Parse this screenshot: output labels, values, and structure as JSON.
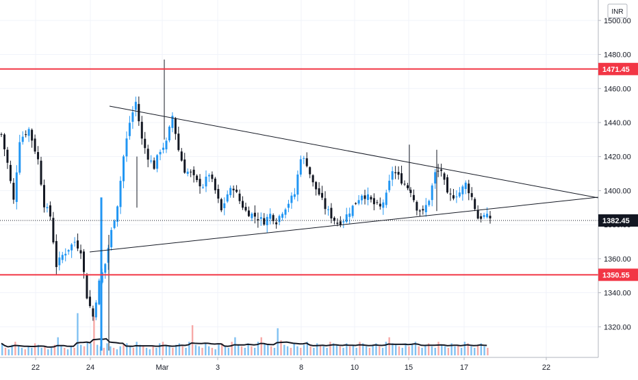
{
  "chart_data": {
    "type": "candlestick",
    "currency": "INR",
    "colors": {
      "up": "#2196f3",
      "down": "#131722",
      "level": "#f23645",
      "last_price": "#131722",
      "trendline": "#131722",
      "grid": "#f0f3fa",
      "volume_up": "#80c1f2",
      "volume_down": "#f7a9a7",
      "volume_ma": "#131722"
    },
    "y_axis": {
      "ticks": [
        "1500.00",
        "1480.00",
        "1460.00",
        "1440.00",
        "1420.00",
        "1400.00",
        "1380.00",
        "1360.00",
        "1340.00",
        "1320.00"
      ],
      "range": [
        1302,
        1512
      ]
    },
    "x_axis": {
      "ticks": [
        "22",
        "24",
        "Mar",
        "3",
        "8",
        "10",
        "15",
        "17",
        "22"
      ],
      "date_range": [
        "Feb 20",
        "Mar 24"
      ]
    },
    "levels": [
      {
        "label": "1471.45",
        "value": 1471.45
      },
      {
        "label": "1350.55",
        "value": 1350.55
      }
    ],
    "last_price": {
      "label": "1382.45",
      "value": 1382.45
    },
    "trendlines": [
      {
        "name": "upper-trendline",
        "from": [
          "Feb 25",
          1458
        ],
        "to": [
          "Mar 23",
          1396
        ]
      },
      {
        "name": "lower-trendline",
        "from": [
          "Feb 24",
          1364
        ],
        "to": [
          "Mar 23",
          1397
        ]
      }
    ],
    "highlight_candles": [
      {
        "x": "Feb 24",
        "low": 1306,
        "high": 1396
      },
      {
        "x": "Feb 24",
        "low": 1306,
        "high": 1374
      }
    ],
    "price_path": [
      [
        0,
        1433
      ],
      [
        2,
        1416
      ],
      [
        4,
        1394
      ],
      [
        6,
        1430
      ],
      [
        9,
        1436
      ],
      [
        12,
        1418
      ],
      [
        14,
        1392
      ],
      [
        16,
        1385
      ],
      [
        18,
        1356
      ],
      [
        20,
        1362
      ],
      [
        22,
        1366
      ],
      [
        24,
        1370
      ],
      [
        26,
        1365
      ],
      [
        28,
        1338
      ],
      [
        30,
        1326
      ],
      [
        32,
        1346
      ],
      [
        34,
        1357
      ],
      [
        36,
        1376
      ],
      [
        38,
        1392
      ],
      [
        40,
        1420
      ],
      [
        42,
        1440
      ],
      [
        44,
        1452
      ],
      [
        46,
        1430
      ],
      [
        48,
        1420
      ],
      [
        50,
        1414
      ],
      [
        52,
        1424
      ],
      [
        54,
        1428
      ],
      [
        56,
        1444
      ],
      [
        58,
        1424
      ],
      [
        60,
        1412
      ],
      [
        62,
        1410
      ],
      [
        64,
        1405
      ],
      [
        66,
        1403
      ],
      [
        68,
        1410
      ],
      [
        70,
        1400
      ],
      [
        72,
        1388
      ],
      [
        74,
        1398
      ],
      [
        76,
        1402
      ],
      [
        78,
        1394
      ],
      [
        80,
        1388
      ],
      [
        82,
        1386
      ],
      [
        84,
        1384
      ],
      [
        86,
        1382
      ],
      [
        88,
        1386
      ],
      [
        90,
        1382
      ],
      [
        92,
        1388
      ],
      [
        94,
        1393
      ],
      [
        96,
        1398
      ],
      [
        98,
        1420
      ],
      [
        100,
        1416
      ],
      [
        102,
        1404
      ],
      [
        104,
        1398
      ],
      [
        106,
        1390
      ],
      [
        108,
        1385
      ],
      [
        110,
        1381
      ],
      [
        112,
        1383
      ],
      [
        114,
        1388
      ],
      [
        116,
        1393
      ],
      [
        118,
        1398
      ],
      [
        120,
        1396
      ],
      [
        122,
        1392
      ],
      [
        124,
        1390
      ],
      [
        126,
        1397
      ],
      [
        128,
        1412
      ],
      [
        130,
        1408
      ],
      [
        132,
        1404
      ],
      [
        134,
        1400
      ],
      [
        136,
        1390
      ],
      [
        138,
        1387
      ],
      [
        140,
        1395
      ],
      [
        142,
        1410
      ],
      [
        144,
        1412
      ],
      [
        146,
        1397
      ],
      [
        148,
        1397
      ],
      [
        150,
        1399
      ],
      [
        152,
        1404
      ],
      [
        154,
        1396
      ],
      [
        156,
        1384
      ],
      [
        158,
        1385
      ],
      [
        160,
        1384
      ]
    ],
    "volume_values": [
      8,
      5,
      4,
      7,
      9,
      6,
      5,
      4,
      6,
      5,
      8,
      7,
      5,
      6,
      4,
      5,
      7,
      12,
      6,
      5,
      4,
      6,
      5,
      28,
      7,
      6,
      9,
      8,
      26,
      7,
      6,
      5,
      8,
      6,
      5,
      4,
      6,
      7,
      8,
      6,
      5,
      9,
      7,
      6,
      5,
      4,
      6,
      5,
      8,
      9,
      7,
      6,
      5,
      7,
      8,
      6,
      5,
      9,
      20,
      7,
      6,
      5,
      8,
      6,
      5,
      4,
      7,
      8,
      6,
      5,
      9,
      12,
      7,
      6,
      5,
      8,
      6,
      5,
      9,
      12,
      8,
      7,
      6,
      5,
      18,
      10,
      7,
      6,
      5,
      8,
      6,
      5,
      7,
      9,
      6,
      5,
      8,
      7,
      6,
      5,
      9,
      8,
      7,
      6,
      5,
      8,
      6,
      7,
      5,
      9,
      8,
      6,
      5,
      7,
      8,
      6,
      5,
      9,
      12,
      8,
      7,
      6,
      5,
      8,
      6,
      7,
      9,
      6,
      5,
      7,
      8,
      6,
      5,
      9,
      7,
      6,
      5,
      8,
      6,
      7,
      5,
      9,
      8,
      6,
      5,
      7,
      8,
      6,
      5
    ],
    "grid": true
  }
}
